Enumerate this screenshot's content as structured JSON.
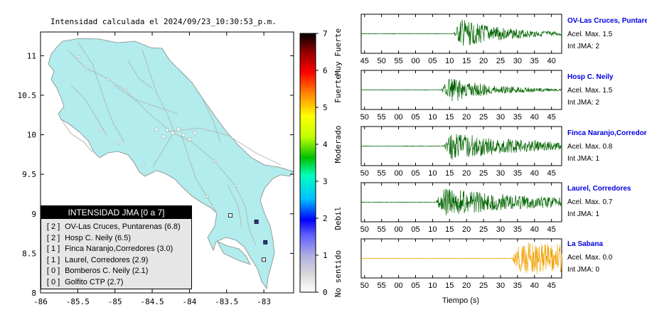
{
  "map": {
    "title": "Intensidad calculada el 2024/09/23_10:30:53_p.m.",
    "xlim": [
      -86,
      -82.6
    ],
    "ylim": [
      8,
      11.3
    ],
    "x_ticks": [
      -86,
      -85.5,
      -85,
      -84.5,
      -84,
      -83.5,
      -83
    ],
    "x_tick_labels": [
      "-86",
      "-85.5",
      "-85",
      "-84.5",
      "-84",
      "-83.5",
      "-83"
    ],
    "y_ticks": [
      8,
      8.5,
      9,
      9.5,
      10,
      10.5,
      11
    ],
    "y_tick_labels": [
      "8",
      "8.5",
      "9",
      "9.5",
      "10",
      "10.5",
      "11"
    ],
    "land_color": "#b2ecec",
    "stations": [
      {
        "lon": -83.1,
        "lat": 8.9,
        "jma": 2
      },
      {
        "lon": -82.98,
        "lat": 8.64,
        "jma": 2
      },
      {
        "lon": -83.45,
        "lat": 8.98,
        "jma": 0
      },
      {
        "lon": -83.0,
        "lat": 8.42,
        "jma": 0
      }
    ]
  },
  "colorbar": {
    "min": 0,
    "max": 7,
    "ticks": [
      "0",
      "1",
      "2",
      "3",
      "4",
      "5",
      "6",
      "7"
    ],
    "category_labels": [
      "No sentido",
      "Debil",
      "Moderado",
      "Fuerte",
      "Muy Fuerte"
    ]
  },
  "legend": {
    "title": "INTENSIDAD JMA [0 a 7]",
    "rows": [
      {
        "jma": "[ 2 ]",
        "name": "OV-Las Cruces, Puntarenas (6.8)"
      },
      {
        "jma": "[ 2 ]",
        "name": "Hosp C. Neily (6.5)"
      },
      {
        "jma": "[ 1 ]",
        "name": "Finca Naranjo,Corredores (3.0)"
      },
      {
        "jma": "[ 1 ]",
        "name": "Laurel, Corredores (2.9)"
      },
      {
        "jma": "[ 0 ]",
        "name": "Bomberos C. Neily (2.1)"
      },
      {
        "jma": "[ 0 ]",
        "name": "Golfito CTP (2.7)"
      }
    ]
  },
  "chart_data": [
    {
      "type": "heatmap",
      "title": "Intensidad calculada el 2024/09/23_10:30:53_p.m.",
      "xlim": [
        -86,
        -82.6
      ],
      "ylim": [
        8,
        11.3
      ],
      "colorbar_range": [
        0,
        7
      ]
    },
    {
      "type": "line",
      "xlabel": "Tiempo (s)",
      "series": [
        {
          "name": "OV-Las Cruces, Puntarenas",
          "acel_max": "Acel. Max. 1.5",
          "int_jma": "Int JMA: 2",
          "color": "#006400",
          "ticks": [
            "45",
            "50",
            "55",
            "00",
            "05",
            "10",
            "15",
            "20",
            "25",
            "30",
            "35",
            "40"
          ],
          "onset": 0.46,
          "amp": 0.9,
          "decay": 0.25
        },
        {
          "name": "Hosp C. Neily",
          "acel_max": "Acel. Max. 1.5",
          "int_jma": "Int JMA: 2",
          "color": "#006400",
          "ticks": [
            "50",
            "55",
            "00",
            "05",
            "10",
            "15",
            "20",
            "25",
            "30",
            "35",
            "40",
            "45"
          ],
          "onset": 0.4,
          "amp": 0.85,
          "decay": 0.22
        },
        {
          "name": "Finca Naranjo,Corredores",
          "acel_max": "Acel. Max. 0.8",
          "int_jma": "Int JMA: 1",
          "color": "#006400",
          "ticks": [
            "50",
            "55",
            "00",
            "05",
            "10",
            "15",
            "20",
            "25",
            "30",
            "35",
            "40",
            "45"
          ],
          "onset": 0.41,
          "amp": 0.8,
          "decay": 0.45
        },
        {
          "name": "Laurel, Corredores",
          "acel_max": "Acel. Max. 0.7",
          "int_jma": "Int JMA: 1",
          "color": "#006400",
          "ticks": [
            "50",
            "55",
            "00",
            "05",
            "10",
            "15",
            "20",
            "25",
            "30",
            "35",
            "40",
            "45"
          ],
          "onset": 0.37,
          "amp": 0.8,
          "decay": 0.55
        },
        {
          "name": "La Sabana",
          "acel_max": "Acel. Max. 0.0",
          "int_jma": "Int JMA: 0",
          "color": "#f0a000",
          "ticks": [
            "50",
            "55",
            "00",
            "05",
            "10",
            "15",
            "20",
            "25",
            "30",
            "35",
            "40",
            "45"
          ],
          "onset": 0.75,
          "amp": 0.9,
          "decay": 1.5
        }
      ]
    }
  ]
}
